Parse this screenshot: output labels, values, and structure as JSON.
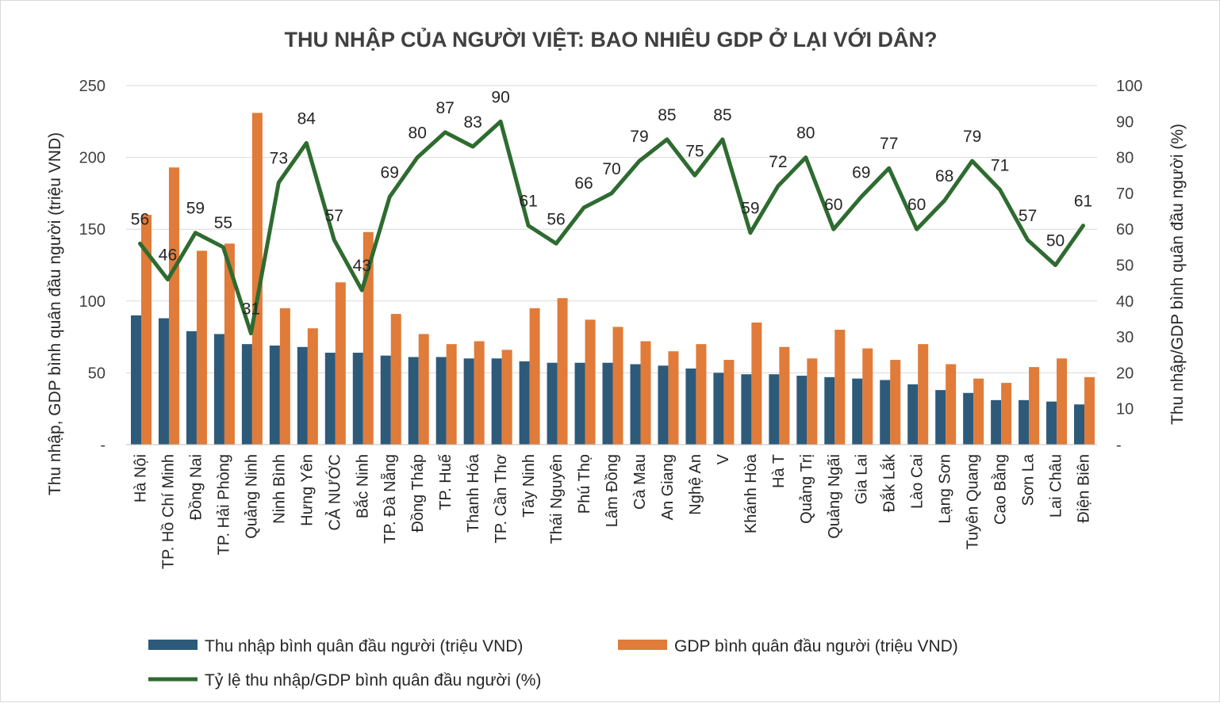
{
  "chart_data": {
    "type": "bar",
    "title": "THU NHẬP CỦA NGƯỜI VIỆT: BAO NHIÊU GDP Ở LẠI VỚI DÂN?",
    "ylabel_left": "Thu nhập, GDP bình quân đầu người (triệu VND)",
    "ylabel_right": "Thu nhập/GDP bình quân đầu người (%)",
    "ylim_left": [
      0,
      250
    ],
    "ylim_right": [
      0,
      100
    ],
    "yticks_left": [
      "-",
      "50",
      "100",
      "150",
      "200",
      "250"
    ],
    "yticks_right": [
      "-",
      "10",
      "20",
      "30",
      "40",
      "50",
      "60",
      "70",
      "80",
      "90",
      "100"
    ],
    "grid": true,
    "legend_position": "bottom",
    "colors": {
      "income": "#2e5a7a",
      "gdp": "#e07b39",
      "ratio": "#2e6b30"
    },
    "categories": [
      "Hà Nội",
      "TP. Hồ Chí Minh",
      "Đồng Nai",
      "TP. Hải Phòng",
      "Quảng Ninh",
      "Ninh Bình",
      "Hưng Yên",
      "CẢ NƯỚC",
      "Bắc Ninh",
      "TP. Đà Nẵng",
      "Đồng Tháp",
      "TP. Huế",
      "Thanh Hóa",
      "TP. Cần Thơ",
      "Tây Ninh",
      "Thái Nguyên",
      "Phú Thọ",
      "Lâm Đồng",
      "Cà Mau",
      "An Giang",
      "Nghệ An",
      "V",
      "Khánh Hòa",
      "Hà T",
      "Quảng Trị",
      "Quảng Ngãi",
      "Gia Lai",
      "Đắk Lắk",
      "Lào Cai",
      "Lạng Sơn",
      "Tuyên Quang",
      "Cao Bằng",
      "Sơn La",
      "Lai Châu",
      "Điện Biên"
    ],
    "series": [
      {
        "name": "Thu nhập bình quân đầu người (triệu VND)",
        "kind": "bar",
        "axis": "left",
        "values": [
          90,
          88,
          79,
          77,
          70,
          69,
          68,
          64,
          64,
          62,
          61,
          61,
          60,
          60,
          58,
          57,
          57,
          57,
          56,
          55,
          53,
          50,
          49,
          49,
          48,
          47,
          46,
          45,
          42,
          38,
          36,
          31,
          31,
          30,
          28
        ]
      },
      {
        "name": "GDP bình quân đầu người (triệu VND)",
        "kind": "bar",
        "axis": "left",
        "values": [
          160,
          193,
          135,
          140,
          231,
          95,
          81,
          113,
          148,
          91,
          77,
          70,
          72,
          66,
          95,
          102,
          87,
          82,
          72,
          65,
          70,
          59,
          85,
          68,
          60,
          80,
          67,
          59,
          70,
          56,
          46,
          43,
          54,
          60,
          47
        ]
      },
      {
        "name": "Tỷ lệ thu nhập/GDP bình quân đầu người (%)",
        "kind": "line",
        "axis": "right",
        "values": [
          56,
          46,
          59,
          55,
          31,
          73,
          84,
          57,
          43,
          69,
          80,
          87,
          83,
          90,
          61,
          56,
          66,
          70,
          79,
          85,
          75,
          85,
          59,
          72,
          80,
          60,
          69,
          77,
          60,
          68,
          79,
          71,
          57,
          50,
          61
        ]
      }
    ]
  }
}
